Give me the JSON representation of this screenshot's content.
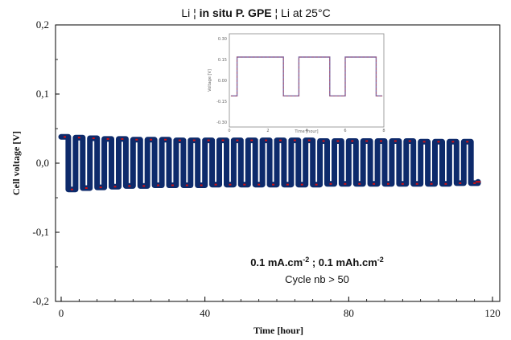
{
  "chart_data": {
    "type": "line",
    "title": {
      "part1": "Li ¦ ",
      "part2": "in situ P. GPE",
      "part3": " ¦ Li  at 25°C"
    },
    "xlabel": "Time [hour]",
    "ylabel": "Cell voltage [V]",
    "xlim": [
      0,
      120
    ],
    "ylim": [
      -0.2,
      0.2
    ],
    "xticks": [
      0,
      40,
      80,
      120
    ],
    "xtick_labels": [
      "0",
      "40",
      "80",
      "120"
    ],
    "yticks": [
      -0.2,
      -0.1,
      0.0,
      0.1,
      0.2
    ],
    "ytick_labels": [
      "-0,2",
      "-0,1",
      "0,0",
      "0,1",
      "0,2"
    ],
    "grid": false,
    "series": [
      {
        "color": "#0d2a6b",
        "marker_color": "#d01010",
        "period_hours": 4,
        "x_start": 0,
        "x_end": 116,
        "peak_values": [
          0.038,
          0.037,
          0.036,
          0.035,
          0.035,
          0.034,
          0.034,
          0.034,
          0.033,
          0.033,
          0.033,
          0.033,
          0.033,
          0.033,
          0.033,
          0.033,
          0.033,
          0.033,
          0.032,
          0.032,
          0.032,
          0.032,
          0.032,
          0.032,
          0.032,
          0.031,
          0.031,
          0.031,
          0.031
        ],
        "trough_values": [
          -0.038,
          -0.036,
          -0.035,
          -0.034,
          -0.033,
          -0.033,
          -0.032,
          -0.032,
          -0.032,
          -0.032,
          -0.031,
          -0.031,
          -0.031,
          -0.031,
          -0.031,
          -0.031,
          -0.031,
          -0.031,
          -0.03,
          -0.03,
          -0.03,
          -0.03,
          -0.03,
          -0.03,
          -0.03,
          -0.03,
          -0.03,
          -0.029,
          -0.029
        ],
        "end_value": -0.027
      }
    ],
    "annotations": [
      {
        "parts": [
          {
            "text": "0.1 mA.cm",
            "bold": true
          },
          {
            "text": "-2",
            "bold": true,
            "sup": true
          },
          {
            "text": "  ; 0.1 mAh.cm",
            "bold": true
          },
          {
            "text": "-2",
            "bold": true,
            "sup": true
          }
        ],
        "position": "bottom-right"
      },
      {
        "parts": [
          {
            "text": "Cycle nb > 50",
            "bold": false
          }
        ],
        "position": "bottom-right"
      }
    ],
    "inset": {
      "position": "top-center",
      "ytick_labels": [
        "0.30",
        "0.15",
        "0.00",
        "-0.15",
        "-0.30"
      ],
      "xtick_labels": [
        "0",
        "2",
        "4",
        "6",
        "8"
      ],
      "xlabel": "Time [hour]",
      "ylabel": "Voltage [V]",
      "upper_value": 0.15,
      "lower_value": -0.1,
      "pulses": [
        [
          0.05,
          0.35
        ],
        [
          0.45,
          0.65
        ],
        [
          0.75,
          0.95
        ]
      ],
      "line_color": "#7a6aa8",
      "overlay_color": "#d04040"
    }
  }
}
